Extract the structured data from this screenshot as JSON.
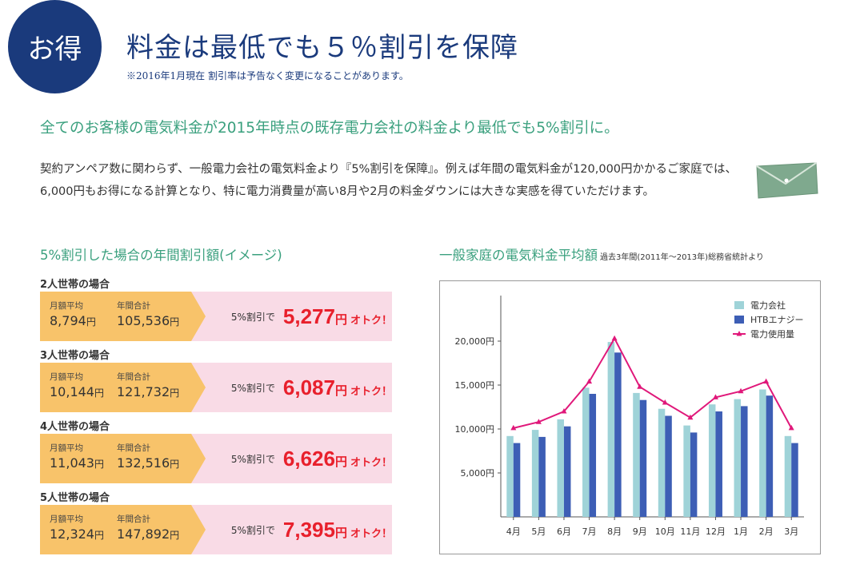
{
  "header": {
    "badge": "お得",
    "title": "料金は最低でも５％割引を保障",
    "note": "※2016年1月現在 割引率は予告なく変更になることがあります。"
  },
  "intro": {
    "lead": "全てのお客様の電気料金が2015年時点の既存電力会社の料金より最低でも5%割引に。",
    "body": "契約アンペア数に関わらず、一般電力会社の電気料金より『5%割引を保障』。例えば年間の電気料金が120,000円かかるご家庭では、6,000円もお得になる計算となり、特に電力消費量が高い8月や2月の料金ダウンには大きな実感を得ていただけます。"
  },
  "discount_section": {
    "title": "5%割引した場合の年間割引額(イメージ)",
    "monthly_caption": "月額平均",
    "annual_caption": "年間合計",
    "yen": "円",
    "discount_label": "5%割引で",
    "otoku": "オトク！",
    "households": [
      {
        "label": "2人世帯の場合",
        "monthly": "8,794",
        "annual": "105,536",
        "saving": "5,277"
      },
      {
        "label": "3人世帯の場合",
        "monthly": "10,144",
        "annual": "121,732",
        "saving": "6,087"
      },
      {
        "label": "4人世帯の場合",
        "monthly": "11,043",
        "annual": "132,516",
        "saving": "6,626"
      },
      {
        "label": "5人世帯の場合",
        "monthly": "12,324",
        "annual": "147,892",
        "saving": "7,395"
      }
    ]
  },
  "chart_section": {
    "title": "一般家庭の電気料金平均額",
    "subtitle": "過去3年間(2011年〜2013年)総務省統計より"
  },
  "chart_data": {
    "type": "bar",
    "categories": [
      "4月",
      "5月",
      "6月",
      "7月",
      "8月",
      "9月",
      "10月",
      "11月",
      "12月",
      "1月",
      "2月",
      "3月"
    ],
    "series": [
      {
        "name": "電力会社",
        "type": "bar",
        "color": "#9fd3d8",
        "values": [
          9200,
          9900,
          11100,
          14700,
          19900,
          14100,
          12300,
          10400,
          12800,
          13400,
          14500,
          9200
        ]
      },
      {
        "name": "HTBエナジー",
        "type": "bar",
        "color": "#3d5eb5",
        "values": [
          8400,
          9100,
          10300,
          14000,
          18700,
          13300,
          11500,
          9600,
          12000,
          12600,
          13800,
          8400
        ]
      },
      {
        "name": "電力使用量",
        "type": "line",
        "color": "#e0187a",
        "values": [
          10100,
          10800,
          12000,
          15400,
          20300,
          14800,
          13000,
          11300,
          13600,
          14300,
          15400,
          10100
        ]
      }
    ],
    "yticks": [
      "5,000円",
      "10,000円",
      "15,000円",
      "20,000円"
    ],
    "ytick_values": [
      5000,
      10000,
      15000,
      20000
    ],
    "ylim": [
      0,
      25000
    ],
    "legend_position": "top-right",
    "grid": false
  }
}
